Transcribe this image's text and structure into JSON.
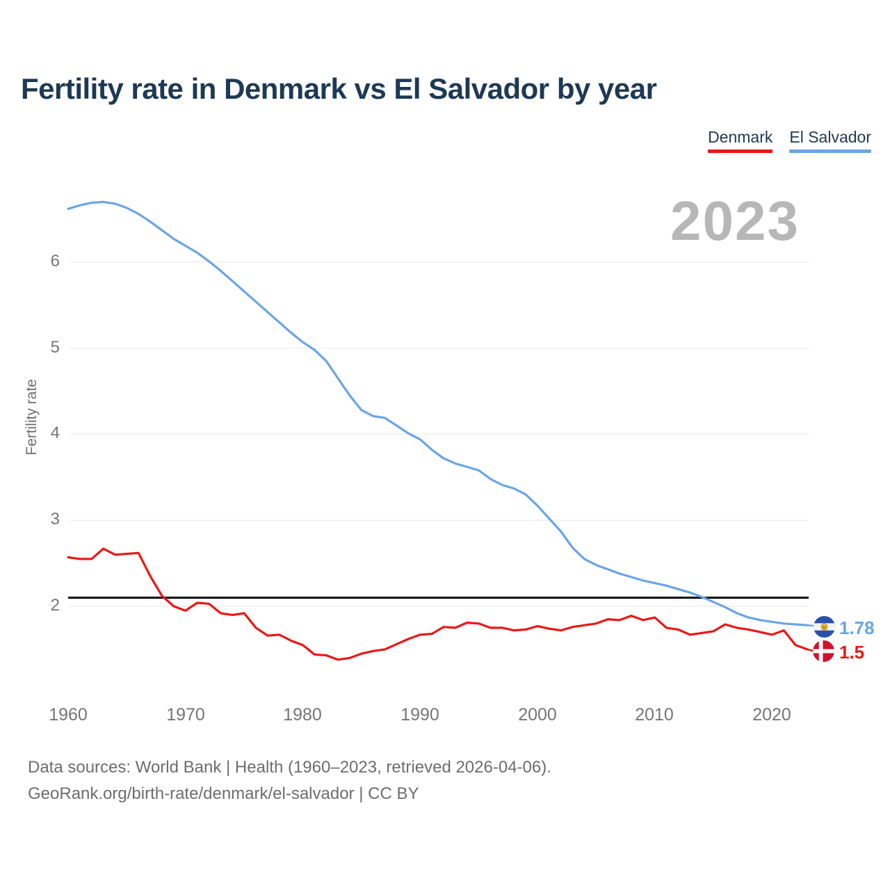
{
  "title": "Fertility rate in Denmark vs El Salvador by year",
  "legend": {
    "items": [
      {
        "label": "Denmark",
        "color": "#ee1515"
      },
      {
        "label": "El Salvador",
        "color": "#69a5e5"
      }
    ]
  },
  "watermark_year": "2023",
  "end_labels": {
    "el_salvador": {
      "value": "1.78",
      "flag": "el-salvador-flag"
    },
    "denmark": {
      "value": "1.5",
      "flag": "denmark-flag"
    }
  },
  "footer": {
    "line1": "Data sources: World Bank | Health (1960–2023, retrieved 2026-04-06).",
    "line2": "GeoRank.org/birth-rate/denmark/el-salvador | CC BY"
  },
  "chart_data": {
    "type": "line",
    "title": "Fertility rate in Denmark vs El Salvador by year",
    "xlabel": "",
    "ylabel": "Fertility rate",
    "ylim": [
      1.3,
      6.8
    ],
    "grid": "horizontal",
    "legend_position": "top-right",
    "replacement_level": 2.1,
    "yticks": [
      6,
      5,
      4,
      3,
      2
    ],
    "xticks": [
      1960,
      1970,
      1980,
      1990,
      2000,
      2010,
      2020
    ],
    "years": [
      1960,
      1961,
      1962,
      1963,
      1964,
      1965,
      1966,
      1967,
      1968,
      1969,
      1970,
      1971,
      1972,
      1973,
      1974,
      1975,
      1976,
      1977,
      1978,
      1979,
      1980,
      1981,
      1982,
      1983,
      1984,
      1985,
      1986,
      1987,
      1988,
      1989,
      1990,
      1991,
      1992,
      1993,
      1994,
      1995,
      1996,
      1997,
      1998,
      1999,
      2000,
      2001,
      2002,
      2003,
      2004,
      2005,
      2006,
      2007,
      2008,
      2009,
      2010,
      2011,
      2012,
      2013,
      2014,
      2015,
      2016,
      2017,
      2018,
      2019,
      2020,
      2021,
      2022,
      2023
    ],
    "series": [
      {
        "name": "Denmark",
        "color": "#ee1515",
        "end_label": "1.5",
        "values": [
          2.57,
          2.55,
          2.55,
          2.67,
          2.6,
          2.61,
          2.62,
          2.35,
          2.12,
          2.0,
          1.95,
          2.04,
          2.03,
          1.92,
          1.9,
          1.92,
          1.75,
          1.66,
          1.67,
          1.6,
          1.55,
          1.44,
          1.43,
          1.38,
          1.4,
          1.45,
          1.48,
          1.5,
          1.56,
          1.62,
          1.67,
          1.68,
          1.76,
          1.75,
          1.81,
          1.8,
          1.75,
          1.75,
          1.72,
          1.73,
          1.77,
          1.74,
          1.72,
          1.76,
          1.78,
          1.8,
          1.85,
          1.84,
          1.89,
          1.84,
          1.87,
          1.75,
          1.73,
          1.67,
          1.69,
          1.71,
          1.79,
          1.75,
          1.73,
          1.7,
          1.67,
          1.72,
          1.55,
          1.5
        ]
      },
      {
        "name": "El Salvador",
        "color": "#69a5e5",
        "end_label": "1.78",
        "values": [
          6.62,
          6.66,
          6.69,
          6.7,
          6.68,
          6.63,
          6.56,
          6.47,
          6.37,
          6.27,
          6.19,
          6.11,
          6.01,
          5.9,
          5.78,
          5.66,
          5.54,
          5.42,
          5.3,
          5.18,
          5.07,
          4.98,
          4.85,
          4.65,
          4.45,
          4.28,
          4.21,
          4.19,
          4.1,
          4.01,
          3.94,
          3.82,
          3.72,
          3.66,
          3.62,
          3.58,
          3.48,
          3.41,
          3.37,
          3.3,
          3.17,
          3.02,
          2.87,
          2.68,
          2.55,
          2.48,
          2.43,
          2.38,
          2.34,
          2.3,
          2.27,
          2.24,
          2.2,
          2.16,
          2.11,
          2.05,
          1.99,
          1.92,
          1.87,
          1.84,
          1.82,
          1.8,
          1.79,
          1.78
        ]
      }
    ]
  }
}
